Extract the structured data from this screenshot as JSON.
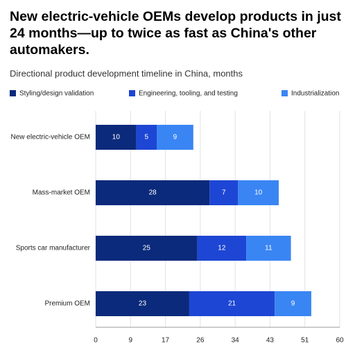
{
  "chart_data": {
    "type": "stacked-bar-horizontal",
    "title": "New electric-vehicle OEMs develop products in just 24 months—up to twice as fast as China's other automakers.",
    "subtitle": "Directional product development timeline in China, months",
    "categories": [
      "New electric-vehicle OEM",
      "Mass-market OEM",
      "Sports car manufacturer",
      "Premium OEM"
    ],
    "series": [
      {
        "name": "Styling/design validation",
        "color": "#0b2a7c",
        "values": [
          10,
          28,
          25,
          23
        ]
      },
      {
        "name": "Engineering, tooling, and testing",
        "color": "#1d46d4",
        "values": [
          5,
          7,
          12,
          21
        ]
      },
      {
        "name": "Industrialization",
        "color": "#3a85f4",
        "values": [
          9,
          10,
          11,
          9
        ]
      }
    ],
    "xlim": [
      0,
      60
    ],
    "xticks": [
      0,
      {
        "value": 8.571,
        "label": "9"
      },
      {
        "value": 17.143,
        "label": "17"
      },
      {
        "value": 25.714,
        "label": "26"
      },
      {
        "value": 34.286,
        "label": "34"
      },
      {
        "value": 42.857,
        "label": "43"
      },
      {
        "value": 51.429,
        "label": "51"
      },
      60
    ],
    "grid": true
  }
}
